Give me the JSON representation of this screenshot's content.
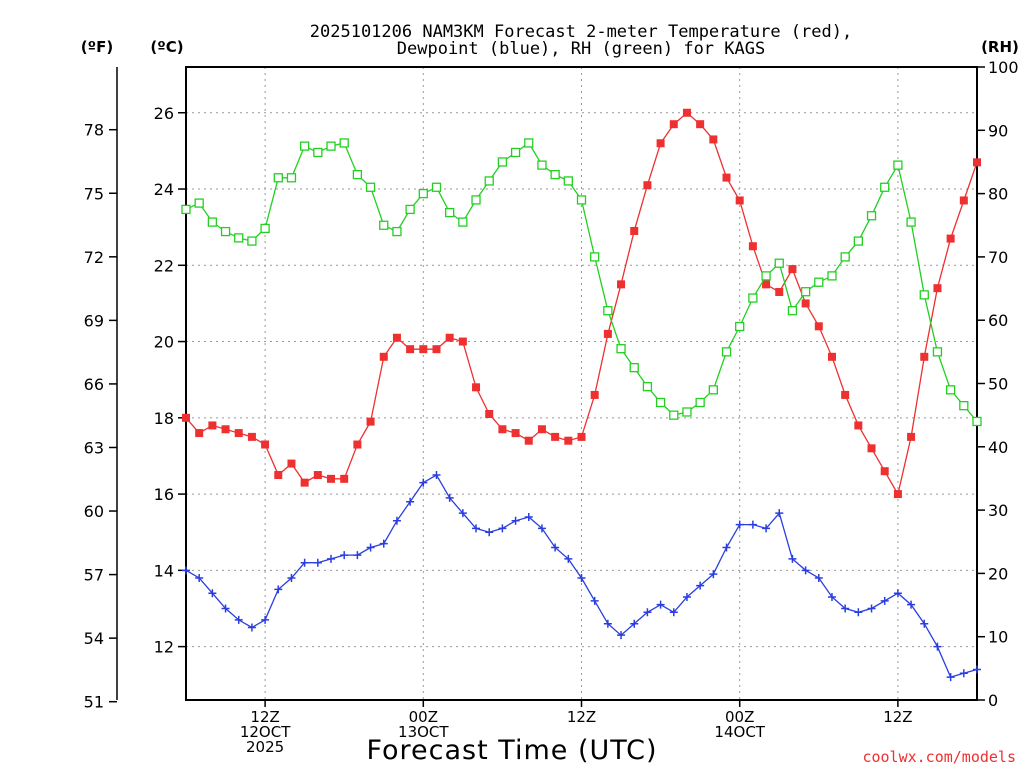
{
  "chart_data": {
    "type": "line",
    "title_line1": "2025101206 NAM3KM Forecast 2-meter Temperature (red),",
    "title_line2": "Dewpoint (blue), RH (green) for KAGS",
    "xlabel": "Forecast Time (UTC)",
    "credit": "coolwx.com/models",
    "left_outer_unit": "(ºF)",
    "left_inner_unit": "(ºC)",
    "right_unit": "(RH)",
    "fahrenheit_ticks": [
      "51",
      "54",
      "57",
      "60",
      "63",
      "66",
      "69",
      "72",
      "75",
      "78"
    ],
    "celsius_ticks": [
      "12",
      "14",
      "16",
      "18",
      "20",
      "22",
      "24",
      "26"
    ],
    "rh_ticks": [
      "0",
      "10",
      "20",
      "30",
      "40",
      "50",
      "60",
      "70",
      "80",
      "90",
      "100"
    ],
    "celsius_range": [
      10.6,
      27.2
    ],
    "rh_range": [
      0,
      100
    ],
    "hour_range": [
      6,
      66
    ],
    "x_ticks": [
      {
        "hour": 12,
        "lines": [
          "12Z",
          "12OCT",
          "2025"
        ]
      },
      {
        "hour": 24,
        "lines": [
          "00Z",
          "13OCT"
        ]
      },
      {
        "hour": 36,
        "lines": [
          "12Z"
        ]
      },
      {
        "hour": 48,
        "lines": [
          "00Z",
          "14OCT"
        ]
      },
      {
        "hour": 60,
        "lines": [
          "12Z"
        ]
      }
    ],
    "x": [
      6,
      7,
      8,
      9,
      10,
      11,
      12,
      13,
      14,
      15,
      16,
      17,
      18,
      19,
      20,
      21,
      22,
      23,
      24,
      25,
      26,
      27,
      28,
      29,
      30,
      31,
      32,
      33,
      34,
      35,
      36,
      37,
      38,
      39,
      40,
      41,
      42,
      43,
      44,
      45,
      46,
      47,
      48,
      49,
      50,
      51,
      52,
      53,
      54,
      55,
      56,
      57,
      58,
      59,
      60,
      61,
      62,
      63,
      64,
      65,
      66
    ],
    "series": [
      {
        "name": "2-meter Temperature",
        "color": "#ee3030",
        "marker": "filled-square",
        "values": [
          18.0,
          17.6,
          17.8,
          17.7,
          17.6,
          17.5,
          17.3,
          16.5,
          16.8,
          16.3,
          16.5,
          16.4,
          16.4,
          17.3,
          17.9,
          19.6,
          20.1,
          19.8,
          19.8,
          19.8,
          20.1,
          20.0,
          18.8,
          18.1,
          17.7,
          17.6,
          17.4,
          17.7,
          17.5,
          17.4,
          17.5,
          18.6,
          20.2,
          21.5,
          22.9,
          24.1,
          25.2,
          25.7,
          26.0,
          25.7,
          25.3,
          24.3,
          23.7,
          22.5,
          21.5,
          21.3,
          21.9,
          21.0,
          20.4,
          19.6,
          18.6,
          17.8,
          17.2,
          16.6,
          16.0,
          17.5,
          19.6,
          21.4,
          22.7,
          23.7,
          24.7
        ]
      },
      {
        "name": "Dewpoint",
        "color": "#2a3ee0",
        "marker": "plus",
        "values": [
          14.0,
          13.8,
          13.4,
          13.0,
          12.7,
          12.5,
          12.7,
          13.5,
          13.8,
          14.2,
          14.2,
          14.3,
          14.4,
          14.4,
          14.6,
          14.7,
          15.3,
          15.8,
          16.3,
          16.5,
          15.9,
          15.5,
          15.1,
          15.0,
          15.1,
          15.3,
          15.4,
          15.1,
          14.6,
          14.3,
          13.8,
          13.2,
          12.6,
          12.3,
          12.6,
          12.9,
          13.1,
          12.9,
          13.3,
          13.6,
          13.9,
          14.6,
          15.2,
          15.2,
          15.1,
          15.5,
          14.3,
          14.0,
          13.8,
          13.3,
          13.0,
          12.9,
          13.0,
          13.2,
          13.4,
          13.1,
          12.6,
          12.0,
          11.2,
          11.3,
          11.4
        ]
      },
      {
        "name": "RH",
        "color": "#22d022",
        "marker": "open-square",
        "values": [
          77.5,
          78.5,
          75.5,
          74.0,
          73.0,
          72.5,
          74.5,
          82.5,
          82.5,
          87.5,
          86.5,
          87.5,
          88.0,
          83.0,
          81.0,
          75.0,
          74.0,
          77.5,
          80.0,
          81.0,
          77.0,
          75.5,
          79.0,
          82.0,
          85.0,
          86.5,
          88.0,
          84.5,
          83.0,
          82.0,
          79.0,
          70.0,
          61.5,
          55.5,
          52.5,
          49.5,
          47.0,
          45.0,
          45.5,
          47.0,
          49.0,
          55.0,
          59.0,
          63.5,
          67.0,
          69.0,
          61.5,
          64.5,
          66.0,
          67.0,
          70.0,
          72.5,
          76.5,
          81.0,
          84.5,
          75.5,
          64.0,
          55.0,
          49.0,
          46.5,
          44.0
        ]
      }
    ]
  }
}
